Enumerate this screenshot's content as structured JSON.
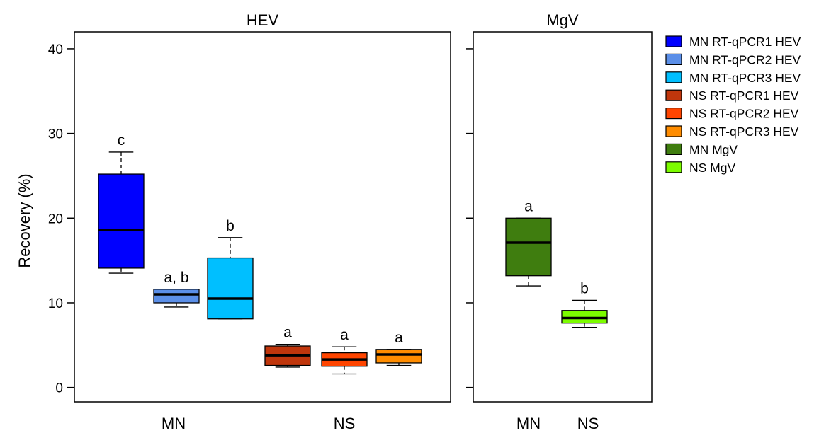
{
  "chart_data": {
    "type": "box",
    "ylabel": "Recovery (%)",
    "ylim": [
      -1.7,
      42
    ],
    "yticks": [
      0,
      10,
      20,
      30,
      40
    ],
    "grid": false,
    "legend_position": "right",
    "panels": [
      {
        "title": "HEV",
        "groups": [
          {
            "label": "MN",
            "boxes": [
              "MN RT-qPCR1 HEV",
              "MN RT-qPCR2 HEV",
              "MN RT-qPCR3 HEV"
            ]
          },
          {
            "label": "NS",
            "boxes": [
              "NS RT-qPCR1 HEV",
              "NS RT-qPCR2 HEV",
              "NS RT-qPCR3 HEV"
            ]
          }
        ]
      },
      {
        "title": "MgV",
        "groups": [
          {
            "label": "MN",
            "boxes": [
              "MN MgV"
            ]
          },
          {
            "label": "NS",
            "boxes": [
              "NS MgV"
            ]
          }
        ]
      }
    ],
    "series": [
      {
        "name": "MN RT-qPCR1 HEV",
        "color": "#0000ff",
        "min": 13.5,
        "q1": 14.1,
        "median": 18.6,
        "q3": 25.2,
        "max": 27.8,
        "letter": "c"
      },
      {
        "name": "MN RT-qPCR2 HEV",
        "color": "#5b8fe8",
        "min": 9.5,
        "q1": 10.0,
        "median": 11.0,
        "q3": 11.6,
        "max": 11.6,
        "letter": "a, b"
      },
      {
        "name": "MN RT-qPCR3 HEV",
        "color": "#00bfff",
        "min": 8.1,
        "q1": 8.1,
        "median": 10.5,
        "q3": 15.3,
        "max": 17.7,
        "letter": "b"
      },
      {
        "name": "NS RT-qPCR1 HEV",
        "color": "#c0360c",
        "min": 2.4,
        "q1": 2.6,
        "median": 3.8,
        "q3": 4.9,
        "max": 5.1,
        "letter": "a"
      },
      {
        "name": "NS RT-qPCR2 HEV",
        "color": "#ff4500",
        "min": 1.6,
        "q1": 2.5,
        "median": 3.3,
        "q3": 4.1,
        "max": 4.8,
        "letter": "a"
      },
      {
        "name": "NS RT-qPCR3 HEV",
        "color": "#ff8c00",
        "min": 2.6,
        "q1": 2.9,
        "median": 3.9,
        "q3": 4.5,
        "max": 4.5,
        "letter": "a"
      },
      {
        "name": "MN MgV",
        "color": "#3f7d0f",
        "min": 12.0,
        "q1": 13.2,
        "median": 17.1,
        "q3": 20.0,
        "max": 20.0,
        "letter": "a"
      },
      {
        "name": "NS MgV",
        "color": "#7cfc00",
        "min": 7.1,
        "q1": 7.6,
        "median": 8.2,
        "q3": 9.1,
        "max": 10.3,
        "letter": "b"
      }
    ]
  }
}
